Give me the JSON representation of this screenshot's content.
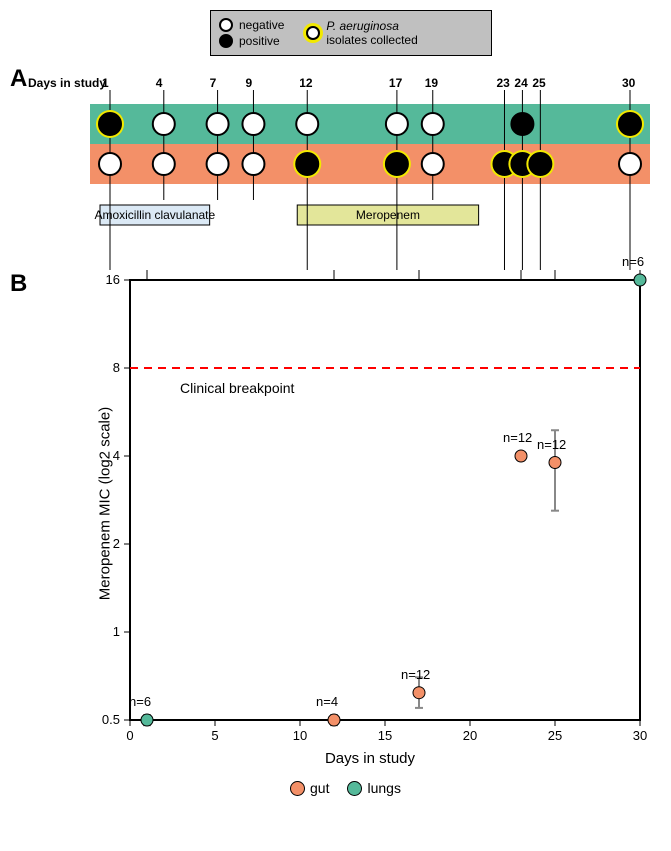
{
  "legend": {
    "negative": "negative",
    "positive": "positive",
    "collected": "P. aeruginosa",
    "collected2": "isolates collected",
    "neg_fill": "#ffffff",
    "neg_stroke": "#000000",
    "pos_fill": "#000000",
    "coll_fill": "#ffffff",
    "coll_ring": "#f2e900"
  },
  "panelA": {
    "label": "A",
    "days_label": "Days in study",
    "days": [
      1,
      4,
      7,
      9,
      12,
      17,
      19,
      23,
      24,
      25,
      30
    ],
    "lungs_bg": "#55b99a",
    "gut_bg": "#f39068",
    "lungs_label": "lungs",
    "gut_label": "gut",
    "lungs": [
      {
        "day": 1,
        "pos": true,
        "coll": true
      },
      {
        "day": 4,
        "pos": false,
        "coll": false
      },
      {
        "day": 7,
        "pos": false,
        "coll": false
      },
      {
        "day": 9,
        "pos": false,
        "coll": false
      },
      {
        "day": 12,
        "pos": false,
        "coll": false
      },
      {
        "day": 17,
        "pos": false,
        "coll": false
      },
      {
        "day": 19,
        "pos": false,
        "coll": false
      },
      {
        "day": 24,
        "pos": true,
        "coll": false
      },
      {
        "day": 30,
        "pos": true,
        "coll": true
      }
    ],
    "gut": [
      {
        "day": 1,
        "pos": false,
        "coll": false
      },
      {
        "day": 4,
        "pos": false,
        "coll": false
      },
      {
        "day": 7,
        "pos": false,
        "coll": false
      },
      {
        "day": 9,
        "pos": false,
        "coll": false
      },
      {
        "day": 12,
        "pos": true,
        "coll": true
      },
      {
        "day": 17,
        "pos": true,
        "coll": true
      },
      {
        "day": 19,
        "pos": false,
        "coll": false
      },
      {
        "day": 23,
        "pos": true,
        "coll": true
      },
      {
        "day": 24,
        "pos": true,
        "coll": true
      },
      {
        "day": 25,
        "pos": true,
        "coll": true
      },
      {
        "day": 30,
        "pos": false,
        "coll": false
      }
    ],
    "treatments": [
      {
        "label": "Amoxicillin clavulanate",
        "start": 1,
        "end": 6,
        "color": "#dbe9f5"
      },
      {
        "label": "Meropenem",
        "start": 12,
        "end": 21,
        "color": "#e3e69a"
      }
    ]
  },
  "panelB": {
    "label": "B",
    "ylabel": "Meropenem MIC (log2 scale)",
    "xlabel": "Days in study",
    "xmin": 0,
    "xmax": 30,
    "xticks": [
      0,
      5,
      10,
      15,
      20,
      25,
      30
    ],
    "yticks": [
      0.5,
      1,
      2,
      4,
      8,
      16
    ],
    "breakpoint_value": 8,
    "breakpoint_label": "Clinical breakpoint",
    "breakpoint_color": "#ff0000",
    "gut_color": "#f39068",
    "lungs_color": "#55b99a",
    "legend_gut": "gut",
    "legend_lungs": "lungs",
    "points": [
      {
        "day": 1,
        "mic": 0.5,
        "n": "n=6",
        "site": "lungs",
        "err_lo": 0.48,
        "err_hi": 0.52
      },
      {
        "day": 12,
        "mic": 0.5,
        "n": "n=4",
        "site": "gut",
        "err_lo": 0.48,
        "err_hi": 0.52
      },
      {
        "day": 17,
        "mic": 0.62,
        "n": "n=12",
        "site": "gut",
        "err_lo": 0.55,
        "err_hi": 0.7
      },
      {
        "day": 23,
        "mic": 4.0,
        "n": "n=12",
        "site": "gut",
        "err_lo": 3.9,
        "err_hi": 4.1
      },
      {
        "day": 25,
        "mic": 3.8,
        "n": "n=12",
        "site": "gut",
        "err_lo": 2.6,
        "err_hi": 4.9
      },
      {
        "day": 30,
        "mic": 16,
        "n": "n=6",
        "site": "lungs",
        "err_lo": 15.5,
        "err_hi": 16.5
      }
    ]
  }
}
